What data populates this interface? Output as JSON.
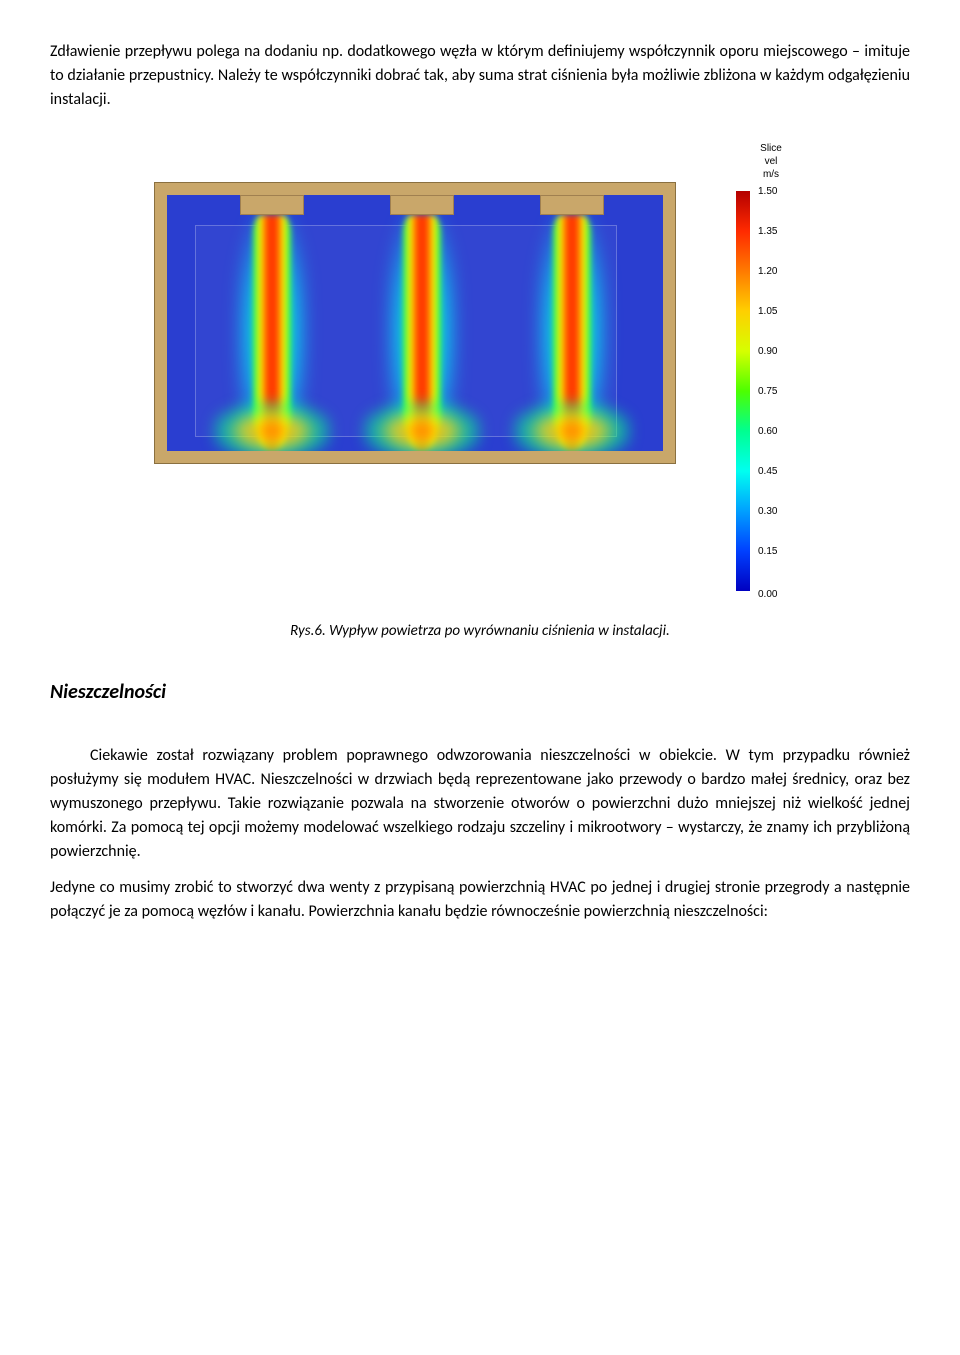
{
  "para1": "Zdławienie przepływu polega na dodaniu np. dodatkowego węzła w którym definiujemy współczynnik oporu miejscowego – imituje to działanie przepustnicy. Należy te współczynniki dobrać tak, aby suma strat ciśnienia była możliwie zbliżona w każdym odgałęzieniu instalacji.",
  "figure": {
    "legend_title_1": "Slice",
    "legend_title_2": "vel",
    "legend_title_3": "m/s",
    "ticks": [
      {
        "v": "1.50",
        "c": "#b40000"
      },
      {
        "v": "1.35",
        "c": "#ff2a00"
      },
      {
        "v": "1.20",
        "c": "#ff7a00"
      },
      {
        "v": "1.05",
        "c": "#ffcf00"
      },
      {
        "v": "0.90",
        "c": "#d6ff00"
      },
      {
        "v": "0.75",
        "c": "#4dff00"
      },
      {
        "v": "0.60",
        "c": "#00ff90"
      },
      {
        "v": "0.45",
        "c": "#00fff0"
      },
      {
        "v": "0.30",
        "c": "#00a0ff"
      },
      {
        "v": "0.15",
        "c": "#0040ff"
      }
    ],
    "last_tick": "0.00",
    "last_color": "#0000c0",
    "caption": "Rys.6. Wypływ powietrza po wyrównaniu ciśnienia w instalacji."
  },
  "section_heading": "Nieszczelności",
  "para2": "Ciekawie został rozwiązany problem poprawnego odwzorowania nieszczelności w obiekcie. W tym przypadku również posłużymy się modułem HVAC. Nieszczelności w drzwiach będą reprezentowane jako przewody o bardzo małej średnicy, oraz bez wymuszonego przepływu. Takie rozwiązanie pozwala na stworzenie otworów o powierzchni dużo mniejszej niż wielkość jednej komórki. Za pomocą tej opcji możemy modelować wszelkiego rodzaju szczeliny i mikrootwory – wystarczy, że znamy ich przybliżoną powierzchnię.",
  "para3": "Jedyne co musimy zrobić to stworzyć dwa wenty z przypisaną powierzchnią HVAC po jednej i drugiej stronie przegrody a następnie połączyć je za pomocą węzłów i kanału. Powierzchnia kanału będzie równocześnie powierzchnią nieszczelności:"
}
